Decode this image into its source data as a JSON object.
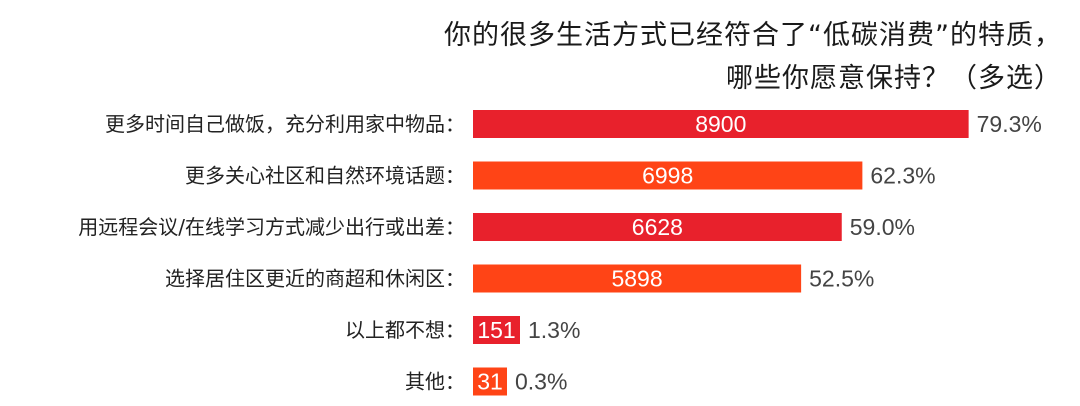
{
  "chart_data": {
    "type": "bar",
    "orientation": "horizontal",
    "title_lines": [
      "你的很多生活方式已经符合了“低碳消费”的特质，",
      "哪些你愿意保持？（多选）"
    ],
    "categories": [
      "更多时间自己做饭，充分利用家中物品：",
      "更多关心社区和自然环境话题：",
      "用远程会议/在线学习方式减少出行或出差：",
      "选择居住区更近的商超和休闲区：",
      "以上都不想：",
      "其他："
    ],
    "values": [
      8900,
      6998,
      6628,
      5898,
      151,
      31
    ],
    "value_labels": [
      "8900",
      "6998",
      "6628",
      "5898",
      "151",
      "31"
    ],
    "percent_labels": [
      "79.3%",
      "62.3%",
      "59.0%",
      "52.5%",
      "1.3%",
      "0.3%"
    ],
    "percents": [
      79.3,
      62.3,
      59.0,
      52.5,
      1.3,
      0.3
    ],
    "bar_colors": [
      "#e8212c",
      "#ff4416",
      "#e8212c",
      "#ff4416",
      "#e8212c",
      "#ff4416"
    ],
    "xlim": [
      0,
      100
    ],
    "grid": false,
    "legend": "none"
  }
}
